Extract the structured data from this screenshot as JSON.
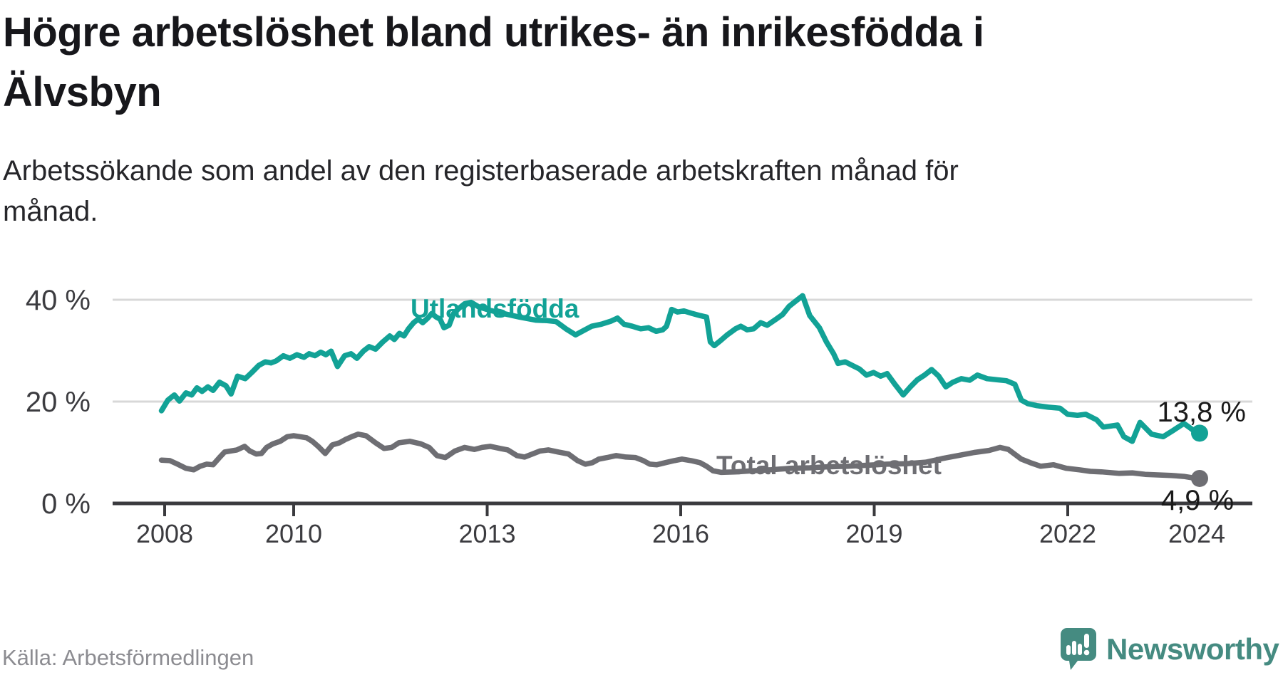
{
  "header": {
    "title": "Högre arbetslöshet bland utrikes- än inrikesfödda i Älvsbyn",
    "title_lines": [
      "Högre arbetslöshet bland utrikes- än inrikesfödda i",
      "Älvsbyn"
    ],
    "subtitle": "Arbetssökande som andel av den registerbaserade arbetskraften månad för månad.",
    "subtitle_lines": [
      "Arbetssökande som andel av den registerbaserade arbetskraften månad för",
      "månad."
    ]
  },
  "footer": {
    "source": "Källa: Arbetsförmedlingen",
    "logo_brand": "Newsworthy",
    "logo_icon": "newsworthy-speech-bubble-bar-chart-icon",
    "logo_color": "#458b81"
  },
  "chart_data": {
    "type": "line",
    "title": "Högre arbetslöshet bland utrikes- än inrikesfödda i Älvsbyn",
    "xlabel": "",
    "ylabel": "",
    "unit": "%",
    "grid": "horizontal",
    "legend_position": "inline-labels",
    "x_axis": {
      "range": [
        2007.8,
        2024.75
      ],
      "ticks": [
        {
          "year": 2008,
          "label": "2008",
          "mark": true
        },
        {
          "year": 2010,
          "label": "2010",
          "mark": true
        },
        {
          "year": 2013,
          "label": "2013",
          "mark": true
        },
        {
          "year": 2016,
          "label": "2016",
          "mark": true
        },
        {
          "year": 2019,
          "label": "2019",
          "mark": true
        },
        {
          "year": 2022,
          "label": "2022",
          "mark": true
        },
        {
          "year": 2024,
          "label": "2024",
          "mark": false
        }
      ]
    },
    "y_axis": {
      "range": [
        0,
        42
      ],
      "ticks": [
        {
          "value": 0,
          "label": "0 %"
        },
        {
          "value": 20,
          "label": "20 %"
        },
        {
          "value": 40,
          "label": "40 %"
        }
      ]
    },
    "series": [
      {
        "name": "Utlandsfödda",
        "color": "#12a296",
        "end_value": 13.8,
        "end_label": "13,8 %",
        "points": [
          [
            2007.95,
            18.2
          ],
          [
            2008.05,
            20.3
          ],
          [
            2008.15,
            21.3
          ],
          [
            2008.23,
            20.1
          ],
          [
            2008.33,
            21.7
          ],
          [
            2008.42,
            21.3
          ],
          [
            2008.5,
            22.7
          ],
          [
            2008.58,
            22.0
          ],
          [
            2008.67,
            22.9
          ],
          [
            2008.75,
            22.2
          ],
          [
            2008.85,
            23.8
          ],
          [
            2008.95,
            23.1
          ],
          [
            2009.03,
            21.5
          ],
          [
            2009.13,
            25.0
          ],
          [
            2009.25,
            24.5
          ],
          [
            2009.35,
            25.7
          ],
          [
            2009.46,
            27.1
          ],
          [
            2009.56,
            27.8
          ],
          [
            2009.65,
            27.6
          ],
          [
            2009.73,
            28.0
          ],
          [
            2009.84,
            29.0
          ],
          [
            2009.94,
            28.5
          ],
          [
            2010.05,
            29.2
          ],
          [
            2010.16,
            28.7
          ],
          [
            2010.24,
            29.4
          ],
          [
            2010.33,
            29.0
          ],
          [
            2010.42,
            29.7
          ],
          [
            2010.5,
            29.2
          ],
          [
            2010.58,
            29.9
          ],
          [
            2010.68,
            26.9
          ],
          [
            2010.79,
            29.0
          ],
          [
            2010.89,
            29.4
          ],
          [
            2010.98,
            28.5
          ],
          [
            2011.08,
            29.9
          ],
          [
            2011.17,
            30.8
          ],
          [
            2011.27,
            30.3
          ],
          [
            2011.38,
            31.7
          ],
          [
            2011.49,
            32.9
          ],
          [
            2011.56,
            32.2
          ],
          [
            2011.64,
            33.4
          ],
          [
            2011.71,
            32.9
          ],
          [
            2011.78,
            34.3
          ],
          [
            2011.86,
            35.5
          ],
          [
            2011.93,
            36.2
          ],
          [
            2012.0,
            35.5
          ],
          [
            2012.08,
            36.4
          ],
          [
            2012.14,
            37.3
          ],
          [
            2012.21,
            36.6
          ],
          [
            2012.27,
            36.2
          ],
          [
            2012.33,
            34.5
          ],
          [
            2012.41,
            35.0
          ],
          [
            2012.48,
            37.3
          ],
          [
            2012.56,
            38.3
          ],
          [
            2012.65,
            39.2
          ],
          [
            2012.75,
            39.5
          ],
          [
            2012.87,
            38.6
          ],
          [
            2013.05,
            37.9
          ],
          [
            2013.25,
            37.3
          ],
          [
            2013.5,
            36.6
          ],
          [
            2013.75,
            36.0
          ],
          [
            2013.93,
            35.9
          ],
          [
            2014.07,
            35.7
          ],
          [
            2014.22,
            34.3
          ],
          [
            2014.37,
            33.1
          ],
          [
            2014.5,
            34.0
          ],
          [
            2014.62,
            34.8
          ],
          [
            2014.77,
            35.2
          ],
          [
            2014.92,
            35.8
          ],
          [
            2015.02,
            36.4
          ],
          [
            2015.12,
            35.2
          ],
          [
            2015.25,
            34.8
          ],
          [
            2015.38,
            34.3
          ],
          [
            2015.5,
            34.5
          ],
          [
            2015.62,
            33.8
          ],
          [
            2015.72,
            34.1
          ],
          [
            2015.78,
            34.8
          ],
          [
            2015.86,
            38.1
          ],
          [
            2015.95,
            37.6
          ],
          [
            2016.05,
            37.8
          ],
          [
            2016.18,
            37.3
          ],
          [
            2016.3,
            36.9
          ],
          [
            2016.4,
            36.6
          ],
          [
            2016.46,
            31.7
          ],
          [
            2016.52,
            31.0
          ],
          [
            2016.62,
            32.0
          ],
          [
            2016.72,
            33.1
          ],
          [
            2016.85,
            34.3
          ],
          [
            2016.93,
            34.8
          ],
          [
            2017.03,
            34.1
          ],
          [
            2017.13,
            34.3
          ],
          [
            2017.24,
            35.5
          ],
          [
            2017.34,
            35.0
          ],
          [
            2017.48,
            36.2
          ],
          [
            2017.58,
            37.1
          ],
          [
            2017.68,
            38.7
          ],
          [
            2017.78,
            39.7
          ],
          [
            2017.89,
            40.8
          ],
          [
            2018.0,
            36.9
          ],
          [
            2018.15,
            34.5
          ],
          [
            2018.26,
            31.7
          ],
          [
            2018.37,
            29.4
          ],
          [
            2018.44,
            27.5
          ],
          [
            2018.55,
            27.8
          ],
          [
            2018.66,
            27.1
          ],
          [
            2018.77,
            26.4
          ],
          [
            2018.88,
            25.2
          ],
          [
            2018.99,
            25.7
          ],
          [
            2019.1,
            25.0
          ],
          [
            2019.2,
            25.5
          ],
          [
            2019.32,
            23.4
          ],
          [
            2019.45,
            21.3
          ],
          [
            2019.56,
            22.9
          ],
          [
            2019.67,
            24.3
          ],
          [
            2019.78,
            25.2
          ],
          [
            2019.89,
            26.3
          ],
          [
            2020.0,
            25.0
          ],
          [
            2020.11,
            22.9
          ],
          [
            2020.22,
            23.8
          ],
          [
            2020.35,
            24.5
          ],
          [
            2020.48,
            24.2
          ],
          [
            2020.6,
            25.2
          ],
          [
            2020.75,
            24.5
          ],
          [
            2020.9,
            24.3
          ],
          [
            2021.05,
            24.1
          ],
          [
            2021.18,
            23.4
          ],
          [
            2021.28,
            20.3
          ],
          [
            2021.38,
            19.6
          ],
          [
            2021.52,
            19.2
          ],
          [
            2021.7,
            18.9
          ],
          [
            2021.88,
            18.7
          ],
          [
            2022.0,
            17.5
          ],
          [
            2022.15,
            17.3
          ],
          [
            2022.28,
            17.5
          ],
          [
            2022.45,
            16.4
          ],
          [
            2022.55,
            15.0
          ],
          [
            2022.67,
            15.2
          ],
          [
            2022.77,
            15.4
          ],
          [
            2022.87,
            13.1
          ],
          [
            2023.0,
            12.2
          ],
          [
            2023.12,
            15.9
          ],
          [
            2023.3,
            13.6
          ],
          [
            2023.48,
            13.1
          ],
          [
            2023.63,
            14.3
          ],
          [
            2023.8,
            15.7
          ],
          [
            2023.9,
            14.8
          ],
          [
            2024.0,
            13.8
          ]
        ]
      },
      {
        "name": "Total arbetslöshet",
        "color": "#6e6e73",
        "end_value": 4.9,
        "end_label": "4,9 %",
        "points": [
          [
            2007.95,
            8.5
          ],
          [
            2008.08,
            8.4
          ],
          [
            2008.2,
            7.7
          ],
          [
            2008.33,
            6.9
          ],
          [
            2008.45,
            6.6
          ],
          [
            2008.55,
            7.3
          ],
          [
            2008.65,
            7.7
          ],
          [
            2008.75,
            7.6
          ],
          [
            2008.85,
            9.0
          ],
          [
            2008.93,
            10.1
          ],
          [
            2009.02,
            10.3
          ],
          [
            2009.12,
            10.5
          ],
          [
            2009.24,
            11.2
          ],
          [
            2009.32,
            10.3
          ],
          [
            2009.42,
            9.7
          ],
          [
            2009.5,
            9.8
          ],
          [
            2009.58,
            11.0
          ],
          [
            2009.68,
            11.7
          ],
          [
            2009.79,
            12.2
          ],
          [
            2009.9,
            13.1
          ],
          [
            2010.0,
            13.3
          ],
          [
            2010.1,
            13.1
          ],
          [
            2010.2,
            12.9
          ],
          [
            2010.29,
            12.2
          ],
          [
            2010.38,
            11.2
          ],
          [
            2010.49,
            9.8
          ],
          [
            2010.6,
            11.5
          ],
          [
            2010.71,
            11.9
          ],
          [
            2010.81,
            12.6
          ],
          [
            2010.9,
            13.1
          ],
          [
            2011.0,
            13.6
          ],
          [
            2011.12,
            13.3
          ],
          [
            2011.27,
            11.9
          ],
          [
            2011.4,
            10.8
          ],
          [
            2011.52,
            11.0
          ],
          [
            2011.63,
            11.9
          ],
          [
            2011.8,
            12.2
          ],
          [
            2011.97,
            11.7
          ],
          [
            2012.1,
            11.0
          ],
          [
            2012.22,
            9.4
          ],
          [
            2012.35,
            9.0
          ],
          [
            2012.5,
            10.3
          ],
          [
            2012.65,
            11.0
          ],
          [
            2012.8,
            10.6
          ],
          [
            2012.92,
            11.0
          ],
          [
            2013.05,
            11.2
          ],
          [
            2013.2,
            10.8
          ],
          [
            2013.32,
            10.5
          ],
          [
            2013.46,
            9.4
          ],
          [
            2013.58,
            9.1
          ],
          [
            2013.7,
            9.7
          ],
          [
            2013.82,
            10.3
          ],
          [
            2013.95,
            10.5
          ],
          [
            2014.1,
            10.1
          ],
          [
            2014.26,
            9.7
          ],
          [
            2014.4,
            8.4
          ],
          [
            2014.52,
            7.7
          ],
          [
            2014.63,
            8.0
          ],
          [
            2014.73,
            8.7
          ],
          [
            2014.86,
            9.0
          ],
          [
            2015.0,
            9.4
          ],
          [
            2015.15,
            9.1
          ],
          [
            2015.3,
            9.0
          ],
          [
            2015.42,
            8.4
          ],
          [
            2015.52,
            7.7
          ],
          [
            2015.63,
            7.6
          ],
          [
            2015.76,
            8.0
          ],
          [
            2015.9,
            8.4
          ],
          [
            2016.02,
            8.7
          ],
          [
            2016.16,
            8.4
          ],
          [
            2016.3,
            8.0
          ],
          [
            2016.4,
            7.3
          ],
          [
            2016.5,
            6.4
          ],
          [
            2016.63,
            6.1
          ],
          [
            2016.85,
            6.2
          ],
          [
            2017.1,
            6.4
          ],
          [
            2017.4,
            6.6
          ],
          [
            2017.7,
            6.9
          ],
          [
            2018.0,
            7.0
          ],
          [
            2018.3,
            7.2
          ],
          [
            2018.6,
            7.3
          ],
          [
            2018.9,
            7.5
          ],
          [
            2019.2,
            7.7
          ],
          [
            2019.5,
            7.8
          ],
          [
            2019.8,
            8.1
          ],
          [
            2020.05,
            8.8
          ],
          [
            2020.3,
            9.4
          ],
          [
            2020.55,
            10.0
          ],
          [
            2020.78,
            10.4
          ],
          [
            2020.95,
            11.0
          ],
          [
            2021.08,
            10.6
          ],
          [
            2021.28,
            8.7
          ],
          [
            2021.42,
            8.0
          ],
          [
            2021.58,
            7.3
          ],
          [
            2021.78,
            7.6
          ],
          [
            2021.98,
            6.9
          ],
          [
            2022.18,
            6.6
          ],
          [
            2022.35,
            6.3
          ],
          [
            2022.52,
            6.2
          ],
          [
            2022.8,
            5.9
          ],
          [
            2023.0,
            6.0
          ],
          [
            2023.2,
            5.7
          ],
          [
            2023.4,
            5.6
          ],
          [
            2023.6,
            5.5
          ],
          [
            2023.8,
            5.3
          ],
          [
            2024.0,
            4.9
          ]
        ]
      }
    ],
    "annotations": [
      {
        "text": "Utlandsfödda",
        "series": 0
      },
      {
        "text": "Total arbetslöshet",
        "series": 1
      },
      {
        "text": "13,8 %",
        "series": 0
      },
      {
        "text": "4,9 %",
        "series": 1
      }
    ],
    "colors": {
      "grid": "#d8d8d8",
      "axis": "#3a3a3e",
      "tick_text": "#3c3c40",
      "value_label": "#1a1a1a"
    }
  }
}
